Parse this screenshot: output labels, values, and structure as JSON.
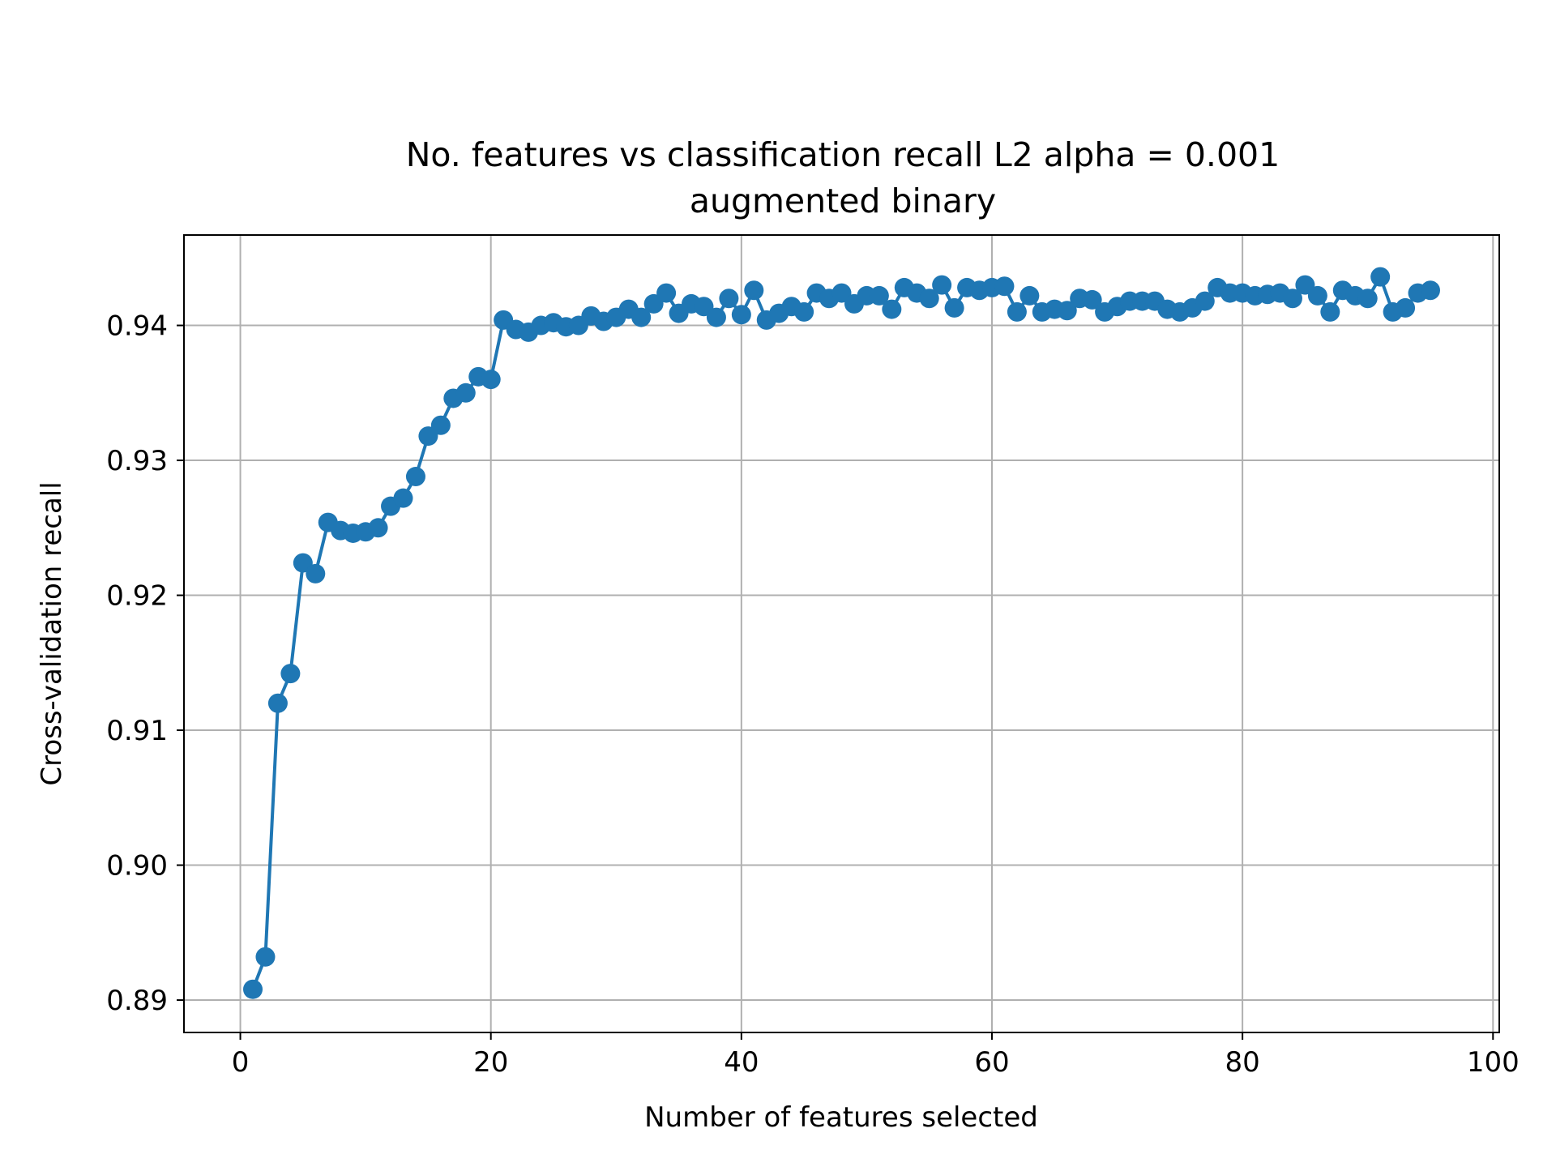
{
  "chart_data": {
    "type": "line",
    "title": "No. features vs classification recall L2 alpha = 0.001",
    "subtitle": "augmented binary",
    "xlabel": "Number of features selected",
    "ylabel": "Cross-validation recall",
    "xlim": [
      -4.5,
      100.5
    ],
    "ylim": [
      0.8876,
      0.9467
    ],
    "xticks": [
      0,
      20,
      40,
      60,
      80,
      100
    ],
    "xtick_labels": [
      "0",
      "20",
      "40",
      "60",
      "80",
      "100"
    ],
    "yticks": [
      0.89,
      0.9,
      0.91,
      0.92,
      0.93,
      0.94
    ],
    "ytick_labels": [
      "0.89",
      "0.90",
      "0.91",
      "0.92",
      "0.93",
      "0.94"
    ],
    "grid": true,
    "marker": "circle",
    "color": "#1f77b4",
    "series": [
      {
        "x": [
          1,
          2,
          3,
          4,
          5,
          6,
          7,
          8,
          9,
          10,
          11,
          12,
          13,
          14,
          15,
          16,
          17,
          18,
          19,
          20,
          21,
          22,
          23,
          24,
          25,
          26,
          27,
          28,
          29,
          30,
          31,
          32,
          33,
          34,
          35,
          36,
          37,
          38,
          39,
          40,
          41,
          42,
          43,
          44,
          45,
          46,
          47,
          48,
          49,
          50,
          51,
          52,
          53,
          54,
          55,
          56,
          57,
          58,
          59,
          60,
          61,
          62,
          63,
          64,
          65,
          66,
          67,
          68,
          69,
          70,
          71,
          72,
          73,
          74,
          75,
          76,
          77,
          78,
          79,
          80,
          81,
          82,
          83,
          84,
          85,
          86,
          87,
          88,
          89,
          90,
          91,
          92,
          93,
          94,
          95
        ],
        "values": [
          0.8908,
          0.8932,
          0.912,
          0.9142,
          0.9224,
          0.9216,
          0.9254,
          0.9248,
          0.9246,
          0.9247,
          0.925,
          0.9266,
          0.9272,
          0.9288,
          0.9318,
          0.9326,
          0.9346,
          0.935,
          0.9362,
          0.936,
          0.9404,
          0.9397,
          0.9395,
          0.94,
          0.9402,
          0.9399,
          0.94,
          0.9407,
          0.9403,
          0.9406,
          0.9412,
          0.9406,
          0.9416,
          0.9424,
          0.9409,
          0.9416,
          0.9414,
          0.9406,
          0.942,
          0.9408,
          0.9426,
          0.9404,
          0.9409,
          0.9414,
          0.941,
          0.9424,
          0.942,
          0.9424,
          0.9416,
          0.9422,
          0.9422,
          0.9412,
          0.9428,
          0.9424,
          0.942,
          0.943,
          0.9413,
          0.9428,
          0.9426,
          0.9428,
          0.9429,
          0.941,
          0.9422,
          0.941,
          0.9412,
          0.9411,
          0.942,
          0.9419,
          0.941,
          0.9414,
          0.9418,
          0.9418,
          0.9418,
          0.9412,
          0.941,
          0.9413,
          0.9418,
          0.9428,
          0.9424,
          0.9424,
          0.9422,
          0.9423,
          0.9424,
          0.942,
          0.943,
          0.9422,
          0.941,
          0.9426,
          0.9422,
          0.942,
          0.9436,
          0.941,
          0.9413,
          0.9424,
          0.9426
        ]
      }
    ]
  }
}
